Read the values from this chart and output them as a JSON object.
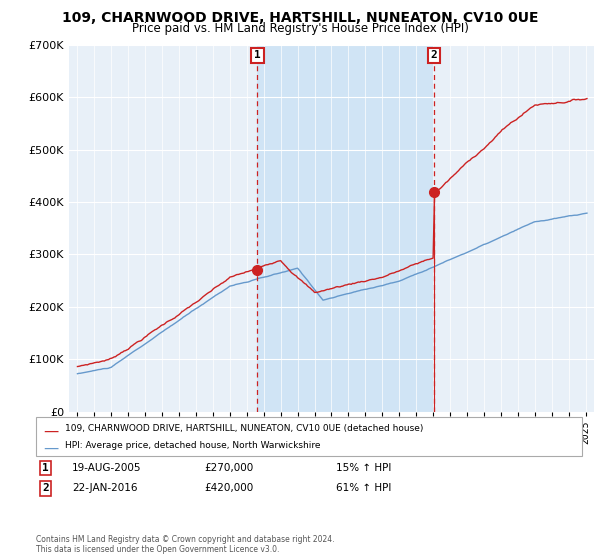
{
  "title": "109, CHARNWOOD DRIVE, HARTSHILL, NUNEATON, CV10 0UE",
  "subtitle": "Price paid vs. HM Land Registry's House Price Index (HPI)",
  "fig_bg": "#ffffff",
  "plot_bg": "#e8f0f8",
  "shade_color": "#d0e4f5",
  "purchase1_date": "19-AUG-2005",
  "purchase1_price": 270000,
  "purchase1_hpi_pct": "15% ↑ HPI",
  "purchase2_date": "22-JAN-2016",
  "purchase2_price": 420000,
  "purchase2_hpi_pct": "61% ↑ HPI",
  "legend_line1": "109, CHARNWOOD DRIVE, HARTSHILL, NUNEATON, CV10 0UE (detached house)",
  "legend_line2": "HPI: Average price, detached house, North Warwickshire",
  "footer1": "Contains HM Land Registry data © Crown copyright and database right 2024.",
  "footer2": "This data is licensed under the Open Government Licence v3.0.",
  "ylim": [
    0,
    700000
  ],
  "xlim_start": 1994.5,
  "xlim_end": 2025.5,
  "red_color": "#cc2222",
  "blue_color": "#6699cc",
  "marker1_x": 2005.63,
  "marker2_x": 2016.06
}
